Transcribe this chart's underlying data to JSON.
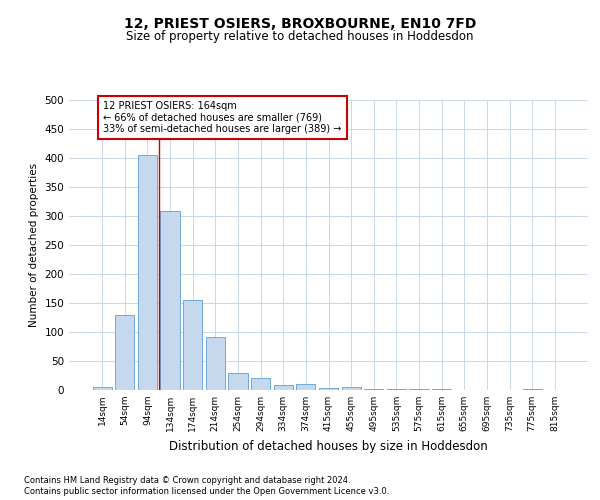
{
  "title": "12, PRIEST OSIERS, BROXBOURNE, EN10 7FD",
  "subtitle": "Size of property relative to detached houses in Hoddesdon",
  "xlabel": "Distribution of detached houses by size in Hoddesdon",
  "ylabel": "Number of detached properties",
  "categories": [
    "14sqm",
    "54sqm",
    "94sqm",
    "134sqm",
    "174sqm",
    "214sqm",
    "254sqm",
    "294sqm",
    "334sqm",
    "374sqm",
    "415sqm",
    "455sqm",
    "495sqm",
    "535sqm",
    "575sqm",
    "615sqm",
    "655sqm",
    "695sqm",
    "735sqm",
    "775sqm",
    "815sqm"
  ],
  "values": [
    5,
    130,
    405,
    308,
    155,
    92,
    30,
    20,
    8,
    11,
    3,
    6,
    2,
    1,
    1,
    1,
    0,
    0,
    0,
    1,
    0
  ],
  "bar_color": "#c5d8ed",
  "bar_edge_color": "#5a9fd4",
  "vline_color": "#cc0000",
  "annotation_text_line1": "12 PRIEST OSIERS: 164sqm",
  "annotation_text_line2": "← 66% of detached houses are smaller (769)",
  "annotation_text_line3": "33% of semi-detached houses are larger (389) →",
  "annotation_box_color": "#ffffff",
  "annotation_box_edge": "#cc0000",
  "grid_color": "#c8d8e8",
  "background_color": "#ffffff",
  "footer_line1": "Contains HM Land Registry data © Crown copyright and database right 2024.",
  "footer_line2": "Contains public sector information licensed under the Open Government Licence v3.0.",
  "ylim": [
    0,
    500
  ],
  "yticks": [
    0,
    50,
    100,
    150,
    200,
    250,
    300,
    350,
    400,
    450,
    500
  ],
  "vline_x": 2.5,
  "title_fontsize": 10,
  "subtitle_fontsize": 8.5,
  "ylabel_fontsize": 7.5,
  "xlabel_fontsize": 8.5,
  "ytick_fontsize": 7.5,
  "xtick_fontsize": 6.5,
  "annotation_fontsize": 7,
  "footer_fontsize": 6
}
